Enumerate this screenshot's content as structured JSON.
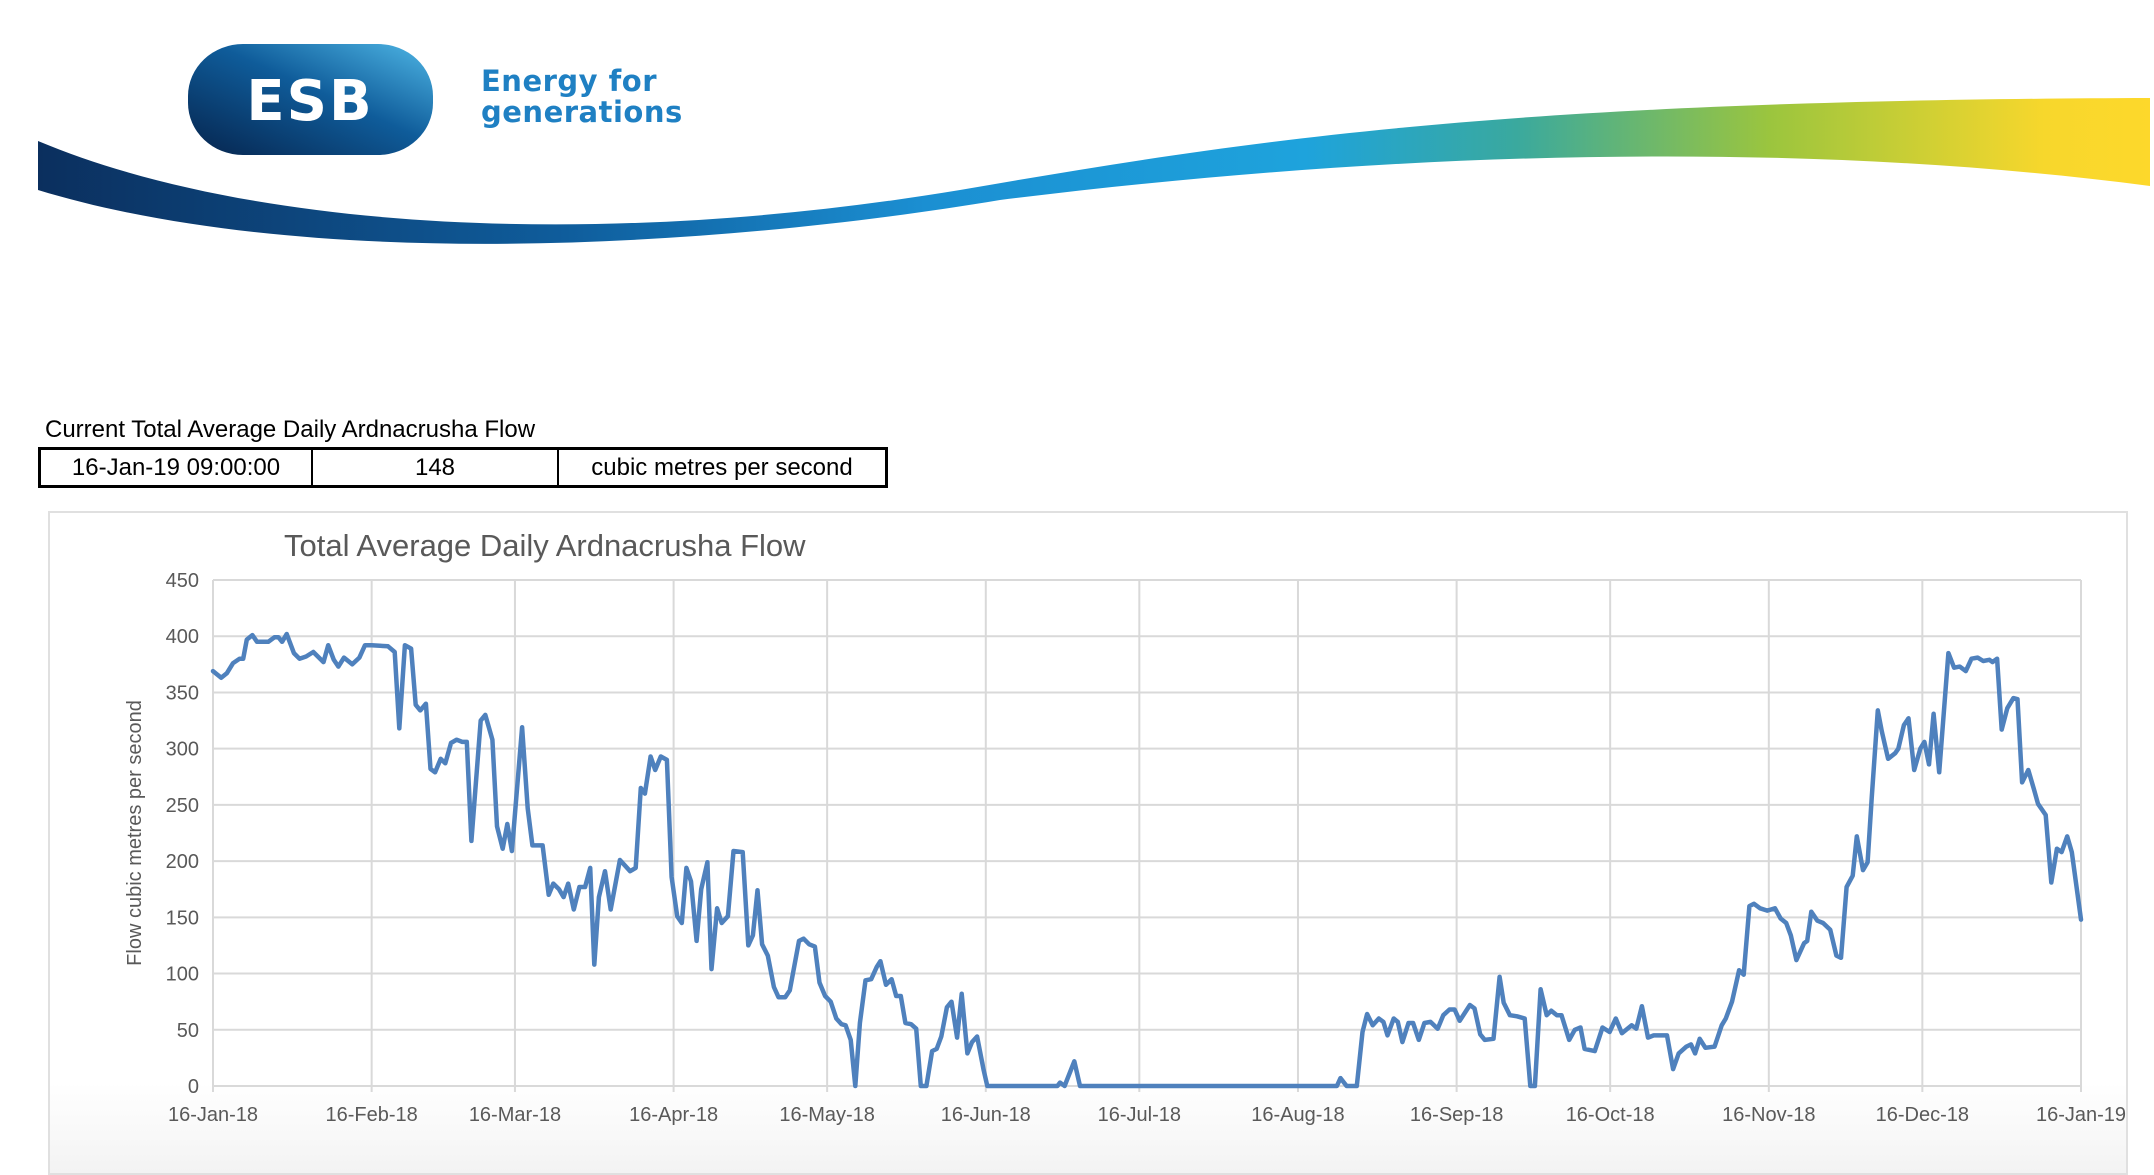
{
  "logo": {
    "brand": "ESB",
    "tagline_line1": "Energy for",
    "tagline_line2": "generations"
  },
  "current": {
    "label": "Current Total Average Daily Ardnacrusha Flow",
    "timestamp": "16-Jan-19 09:00:00",
    "value": "148",
    "unit": "cubic metres per second"
  },
  "colors": {
    "line": "#4f81bd",
    "grid": "#d9d9d9"
  },
  "chart_data": {
    "type": "line",
    "title": "Total Average Daily Ardnacrusha Flow",
    "xlabel": "",
    "ylabel": "Flow cubic metres per second",
    "x_unit": "days since 16-Jan-18",
    "xlim": [
      0,
      365
    ],
    "ylim": [
      0,
      450
    ],
    "grid": true,
    "y_ticks": [
      0,
      50,
      100,
      150,
      200,
      250,
      300,
      350,
      400,
      450
    ],
    "x_ticks": [
      {
        "day": 0,
        "label": "16-Jan-18"
      },
      {
        "day": 31,
        "label": "16-Feb-18"
      },
      {
        "day": 59,
        "label": "16-Mar-18"
      },
      {
        "day": 90,
        "label": "16-Apr-18"
      },
      {
        "day": 120,
        "label": "16-May-18"
      },
      {
        "day": 151,
        "label": "16-Jun-18"
      },
      {
        "day": 181,
        "label": "16-Jul-18"
      },
      {
        "day": 212,
        "label": "16-Aug-18"
      },
      {
        "day": 243,
        "label": "16-Sep-18"
      },
      {
        "day": 273,
        "label": "16-Oct-18"
      },
      {
        "day": 304,
        "label": "16-Nov-18"
      },
      {
        "day": 334,
        "label": "16-Dec-18"
      },
      {
        "day": 365,
        "label": "16-Jan-19"
      }
    ],
    "series": [
      {
        "name": "Flow",
        "points": [
          [
            0,
            369
          ],
          [
            1.6,
            363
          ],
          [
            2.7,
            367
          ],
          [
            3.9,
            376
          ],
          [
            5.2,
            380
          ],
          [
            5.9,
            380
          ],
          [
            6.6,
            397
          ],
          [
            7.7,
            401
          ],
          [
            8.6,
            395
          ],
          [
            10.8,
            395
          ],
          [
            12,
            399
          ],
          [
            12.8,
            399
          ],
          [
            13.5,
            395
          ],
          [
            14.4,
            402
          ],
          [
            15.8,
            385
          ],
          [
            16.9,
            380
          ],
          [
            18.2,
            382
          ],
          [
            19.6,
            386
          ],
          [
            21.6,
            377
          ],
          [
            22.5,
            392
          ],
          [
            23.6,
            379
          ],
          [
            24.5,
            373
          ],
          [
            25.6,
            381
          ],
          [
            27.2,
            375
          ],
          [
            28.6,
            381
          ],
          [
            29.7,
            392
          ],
          [
            31,
            392
          ],
          [
            34.2,
            391
          ],
          [
            35.5,
            386
          ],
          [
            36.4,
            318
          ],
          [
            37.5,
            392
          ],
          [
            38.7,
            389
          ],
          [
            39.6,
            339
          ],
          [
            40.5,
            334
          ],
          [
            41.6,
            340
          ],
          [
            42.5,
            282
          ],
          [
            43.4,
            279
          ],
          [
            44.5,
            291
          ],
          [
            45.4,
            287
          ],
          [
            46.5,
            305
          ],
          [
            47.6,
            308
          ],
          [
            48.7,
            306
          ],
          [
            49.6,
            306
          ],
          [
            50.5,
            218
          ],
          [
            52.3,
            325
          ],
          [
            53.2,
            330
          ],
          [
            54.6,
            308
          ],
          [
            55.5,
            231
          ],
          [
            56.6,
            211
          ],
          [
            57.5,
            233
          ],
          [
            58.4,
            209
          ],
          [
            60.4,
            319
          ],
          [
            61.5,
            247
          ],
          [
            62.4,
            214
          ],
          [
            64.4,
            214
          ],
          [
            65.6,
            170
          ],
          [
            66.5,
            180
          ],
          [
            67.6,
            175
          ],
          [
            68.5,
            168
          ],
          [
            69.4,
            180
          ],
          [
            70.5,
            157
          ],
          [
            71.6,
            177
          ],
          [
            72.7,
            177
          ],
          [
            73.7,
            194
          ],
          [
            74.5,
            108
          ],
          [
            75.4,
            168
          ],
          [
            76.6,
            191
          ],
          [
            77.7,
            157
          ],
          [
            79.5,
            201
          ],
          [
            81.5,
            191
          ],
          [
            82.6,
            194
          ],
          [
            83.6,
            265
          ],
          [
            84.4,
            260
          ],
          [
            85.5,
            293
          ],
          [
            86.4,
            281
          ],
          [
            87.5,
            293
          ],
          [
            88.7,
            290
          ],
          [
            89.6,
            186
          ],
          [
            90.7,
            151
          ],
          [
            91.6,
            145
          ],
          [
            92.5,
            194
          ],
          [
            93.4,
            182
          ],
          [
            94.5,
            129
          ],
          [
            95.4,
            175
          ],
          [
            96.6,
            199
          ],
          [
            97.4,
            104
          ],
          [
            98.5,
            158
          ],
          [
            99.4,
            145
          ],
          [
            100.6,
            151
          ],
          [
            101.7,
            209
          ],
          [
            103.5,
            208
          ],
          [
            104.6,
            125
          ],
          [
            105.5,
            134
          ],
          [
            106.4,
            174
          ],
          [
            107.3,
            126
          ],
          [
            108.4,
            116
          ],
          [
            109.6,
            88
          ],
          [
            110.5,
            79
          ],
          [
            111.8,
            79
          ],
          [
            112.7,
            85
          ],
          [
            114.5,
            129
          ],
          [
            115.4,
            131
          ],
          [
            116.5,
            126
          ],
          [
            117.6,
            124
          ],
          [
            118.5,
            92
          ],
          [
            119.6,
            80
          ],
          [
            120.7,
            75
          ],
          [
            121.8,
            60
          ],
          [
            122.8,
            55
          ],
          [
            123.6,
            54
          ],
          [
            124.6,
            41
          ],
          [
            125.5,
            0
          ],
          [
            126.4,
            56
          ],
          [
            127.5,
            94
          ],
          [
            128.6,
            95
          ],
          [
            129.7,
            106
          ],
          [
            130.4,
            111
          ],
          [
            131.5,
            90
          ],
          [
            132.6,
            95
          ],
          [
            133.5,
            80
          ],
          [
            134.4,
            80
          ],
          [
            135.3,
            56
          ],
          [
            136.4,
            55
          ],
          [
            137.4,
            51
          ],
          [
            138.3,
            0
          ],
          [
            139.4,
            0
          ],
          [
            140.5,
            31
          ],
          [
            141.4,
            33
          ],
          [
            142.3,
            44
          ],
          [
            143.4,
            70
          ],
          [
            144.3,
            75
          ],
          [
            145.4,
            43
          ],
          [
            146.3,
            82
          ],
          [
            147.4,
            29
          ],
          [
            148.3,
            39
          ],
          [
            149.3,
            44
          ],
          [
            150.6,
            14
          ],
          [
            151.3,
            0
          ],
          [
            165,
            0
          ],
          [
            165.5,
            3
          ],
          [
            166.4,
            0
          ],
          [
            168.3,
            22
          ],
          [
            169.4,
            0
          ],
          [
            219.6,
            0
          ],
          [
            220.3,
            7
          ],
          [
            221.5,
            0
          ],
          [
            223.5,
            0
          ],
          [
            224.6,
            48
          ],
          [
            225.5,
            64
          ],
          [
            226.6,
            54
          ],
          [
            227.8,
            60
          ],
          [
            228.7,
            57
          ],
          [
            229.5,
            45
          ],
          [
            230.7,
            60
          ],
          [
            231.5,
            57
          ],
          [
            232.4,
            39
          ],
          [
            233.6,
            56
          ],
          [
            234.5,
            56
          ],
          [
            235.6,
            41
          ],
          [
            236.7,
            56
          ],
          [
            237.9,
            57
          ],
          [
            239.3,
            51
          ],
          [
            240.4,
            63
          ],
          [
            241.6,
            68
          ],
          [
            242.6,
            68
          ],
          [
            243.6,
            58
          ],
          [
            245.6,
            72
          ],
          [
            246.5,
            69
          ],
          [
            247.6,
            46
          ],
          [
            248.5,
            41
          ],
          [
            250.2,
            42
          ],
          [
            251.4,
            97
          ],
          [
            252.2,
            74
          ],
          [
            253.4,
            63
          ],
          [
            254.8,
            62
          ],
          [
            256.3,
            60
          ],
          [
            257.4,
            0
          ],
          [
            258.3,
            0
          ],
          [
            259.4,
            86
          ],
          [
            260.6,
            63
          ],
          [
            261.5,
            67
          ],
          [
            262.6,
            63
          ],
          [
            263.5,
            63
          ],
          [
            265,
            41
          ],
          [
            266.1,
            50
          ],
          [
            267.2,
            52
          ],
          [
            268,
            33
          ],
          [
            270,
            31
          ],
          [
            271.5,
            52
          ],
          [
            272.9,
            48
          ],
          [
            274.1,
            60
          ],
          [
            275.3,
            47
          ],
          [
            277.2,
            54
          ],
          [
            278.1,
            51
          ],
          [
            279.2,
            71
          ],
          [
            280.4,
            43
          ],
          [
            281.5,
            45
          ],
          [
            284.1,
            45
          ],
          [
            285.3,
            15
          ],
          [
            286.4,
            29
          ],
          [
            287.9,
            35
          ],
          [
            288.8,
            37
          ],
          [
            289.6,
            29
          ],
          [
            290.5,
            42
          ],
          [
            291.6,
            34
          ],
          [
            293.4,
            35
          ],
          [
            294.8,
            54
          ],
          [
            295.6,
            60
          ],
          [
            296.8,
            75
          ],
          [
            298.2,
            103
          ],
          [
            299.1,
            99
          ],
          [
            300.2,
            160
          ],
          [
            301.1,
            162
          ],
          [
            302.3,
            158
          ],
          [
            303.7,
            156
          ],
          [
            305.2,
            158
          ],
          [
            306.3,
            149
          ],
          [
            307.4,
            145
          ],
          [
            308.3,
            134
          ],
          [
            309.4,
            112
          ],
          [
            310.9,
            127
          ],
          [
            311.5,
            129
          ],
          [
            312.3,
            155
          ],
          [
            313.5,
            147
          ],
          [
            314.6,
            145
          ],
          [
            316,
            139
          ],
          [
            317.2,
            116
          ],
          [
            318.1,
            114
          ],
          [
            319.2,
            177
          ],
          [
            320.4,
            187
          ],
          [
            321.2,
            222
          ],
          [
            322.4,
            192
          ],
          [
            323.3,
            199
          ],
          [
            324.1,
            256
          ],
          [
            325.3,
            334
          ],
          [
            326.1,
            315
          ],
          [
            327.3,
            291
          ],
          [
            328.7,
            296
          ],
          [
            329.3,
            300
          ],
          [
            330.4,
            321
          ],
          [
            331.3,
            327
          ],
          [
            332.4,
            281
          ],
          [
            333.6,
            300
          ],
          [
            334.4,
            306
          ],
          [
            335.3,
            286
          ],
          [
            336.2,
            331
          ],
          [
            337.3,
            279
          ],
          [
            339.1,
            385
          ],
          [
            340.2,
            372
          ],
          [
            341.3,
            373
          ],
          [
            342.5,
            369
          ],
          [
            343.6,
            380
          ],
          [
            344.8,
            381
          ],
          [
            345.9,
            378
          ],
          [
            347.1,
            379
          ],
          [
            347.7,
            377
          ],
          [
            348.6,
            380
          ],
          [
            349.5,
            317
          ],
          [
            350.6,
            336
          ],
          [
            351.8,
            345
          ],
          [
            352.6,
            344
          ],
          [
            353.5,
            270
          ],
          [
            354.7,
            281
          ],
          [
            355.8,
            264
          ],
          [
            356.6,
            251
          ],
          [
            358.1,
            241
          ],
          [
            359.2,
            181
          ],
          [
            360.3,
            211
          ],
          [
            361.2,
            208
          ],
          [
            362.3,
            222
          ],
          [
            363.2,
            208
          ],
          [
            365,
            148
          ]
        ]
      }
    ]
  }
}
